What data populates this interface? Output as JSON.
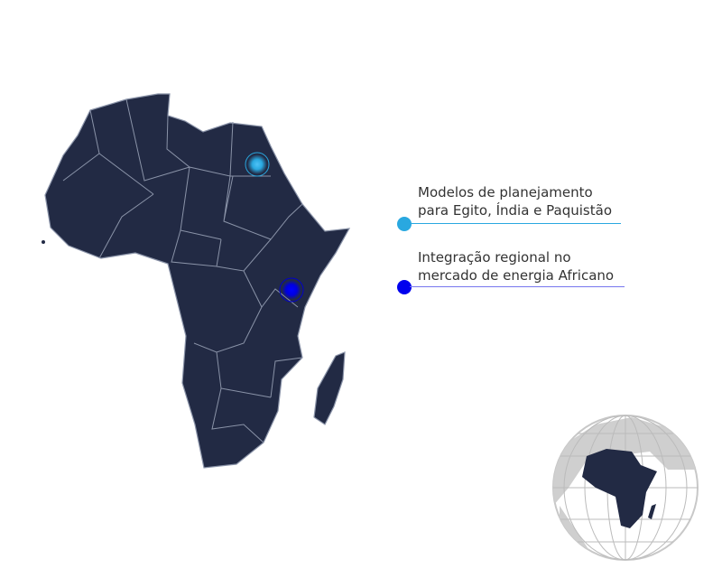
{
  "map": {
    "region": "Africa",
    "land_color": "#222a44",
    "border_color": "#8a93a8",
    "markers": [
      {
        "location": "Egypt",
        "color": "#29a8e0"
      },
      {
        "location": "Kenya",
        "color": "#0000ee"
      }
    ]
  },
  "legend": [
    {
      "line1": "Modelos de planejamento",
      "line2": "para Egito, Índia e Paquistão",
      "color": "#29a8e0"
    },
    {
      "line1": "Integração regional no",
      "line2": "mercado de energia Africano",
      "color": "#0000ee"
    }
  ],
  "globe": {
    "focus": "Africa",
    "land_color": "#c8c8c8",
    "highlight_color": "#222a44"
  }
}
